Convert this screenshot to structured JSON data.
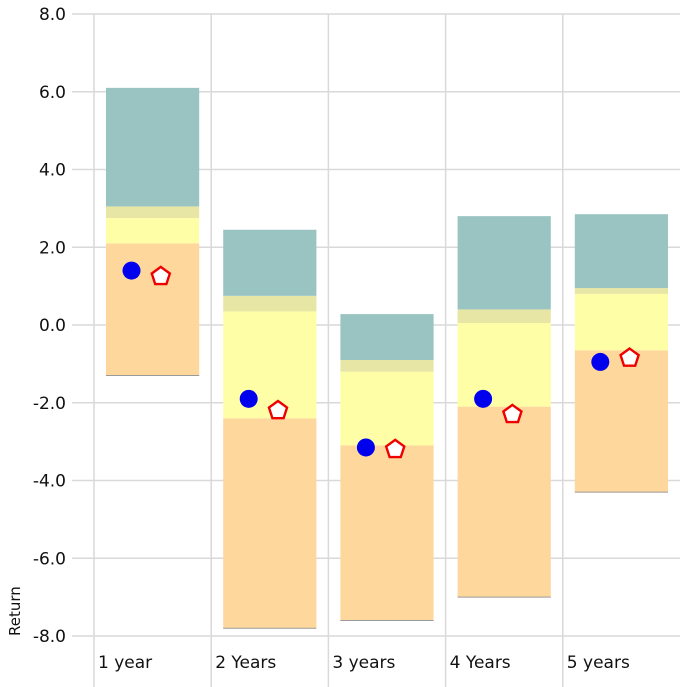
{
  "chart_data": {
    "type": "bar",
    "title": "",
    "xlabel": "",
    "ylabel": "Return",
    "ylim": [
      -8.0,
      8.0
    ],
    "yticks": [
      "8.0",
      "6.0",
      "4.0",
      "2.0",
      "0.0",
      "-2.0",
      "-4.0",
      "-6.0",
      "-8.0"
    ],
    "ytick_values": [
      8,
      6,
      4,
      2,
      0,
      -2,
      -4,
      -6,
      -8
    ],
    "categories": [
      "1 year",
      "2 Years",
      "3 years",
      "4 Years",
      "5 years"
    ],
    "grid": true,
    "stacked_range_bands": [
      {
        "name": "",
        "color": "#fed79c",
        "lower": [
          -1.3,
          -7.8,
          -7.6,
          -7.0,
          -4.3
        ],
        "upper": [
          2.1,
          -2.4,
          -3.1,
          -2.1,
          -0.65
        ]
      },
      {
        "name": "",
        "color": "#fefea6",
        "lower": [
          2.1,
          -2.4,
          -3.1,
          -2.1,
          -0.65
        ],
        "upper": [
          2.75,
          0.35,
          -1.2,
          0.05,
          0.8
        ]
      },
      {
        "name": "",
        "color": "#e8e6a5",
        "lower": [
          2.75,
          0.35,
          -1.2,
          0.05,
          0.8
        ],
        "upper": [
          3.05,
          0.75,
          -0.9,
          0.4,
          0.95
        ]
      },
      {
        "name": "",
        "color": "#9ac4c2",
        "lower": [
          3.05,
          0.75,
          -0.9,
          0.4,
          0.95
        ],
        "upper": [
          6.1,
          2.45,
          0.28,
          2.8,
          2.85
        ]
      }
    ],
    "markers": [
      {
        "name": "",
        "shape": "circle",
        "color": "#0000ee",
        "values": [
          1.4,
          -1.9,
          -3.15,
          -1.9,
          -0.95
        ]
      },
      {
        "name": "",
        "shape": "pentagon",
        "color": "#ee0000",
        "values": [
          1.25,
          -2.2,
          -3.2,
          -2.3,
          -0.85
        ]
      }
    ]
  }
}
